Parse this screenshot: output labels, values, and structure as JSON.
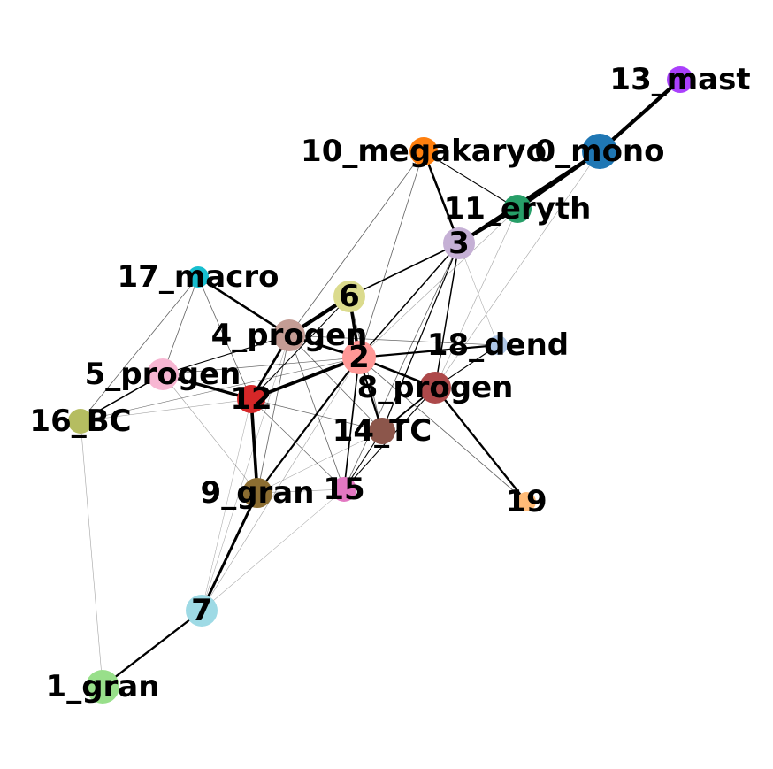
{
  "nodes": [
    {
      "id": "0",
      "label": "0_mono",
      "color": "#1f77b4"
    },
    {
      "id": "1",
      "label": "1_gran",
      "color": "#98df8a"
    },
    {
      "id": "2",
      "label": "2",
      "color": "#ff9896"
    },
    {
      "id": "3",
      "label": "3",
      "color": "#c5b0d5"
    },
    {
      "id": "4",
      "label": "4_progen",
      "color": "#c49c94"
    },
    {
      "id": "5",
      "label": "5_progen",
      "color": "#f7b6d2"
    },
    {
      "id": "6",
      "label": "6",
      "color": "#dbdb8d"
    },
    {
      "id": "7",
      "label": "7",
      "color": "#9edae5"
    },
    {
      "id": "8",
      "label": "8_progen",
      "color": "#ad494a"
    },
    {
      "id": "9",
      "label": "9_gran",
      "color": "#8c6d31"
    },
    {
      "id": "10",
      "label": "10_megakaryo",
      "color": "#ff7f0e"
    },
    {
      "id": "11",
      "label": "11_eryth",
      "color": "#279e68"
    },
    {
      "id": "12",
      "label": "12",
      "color": "#d62728"
    },
    {
      "id": "13",
      "label": "13_mast",
      "color": "#aa40fc"
    },
    {
      "id": "14",
      "label": "14_TC",
      "color": "#8c564b"
    },
    {
      "id": "15",
      "label": "15",
      "color": "#e377c2"
    },
    {
      "id": "16",
      "label": "16_BC",
      "color": "#b5bd61"
    },
    {
      "id": "17",
      "label": "17_macro",
      "color": "#17becf"
    },
    {
      "id": "18",
      "label": "18_dend",
      "color": "#aec7e8"
    },
    {
      "id": "19",
      "label": "19",
      "color": "#ffbb78"
    }
  ],
  "edges": [
    {
      "source": "13",
      "target": "0",
      "weight": 0.95
    },
    {
      "source": "0",
      "target": "11",
      "weight": 0.9
    },
    {
      "source": "0",
      "target": "3",
      "weight": 0.85
    },
    {
      "source": "11",
      "target": "3",
      "weight": 0.6
    },
    {
      "source": "10",
      "target": "3",
      "weight": 0.55
    },
    {
      "source": "10",
      "target": "11",
      "weight": 0.2
    },
    {
      "source": "10",
      "target": "2",
      "weight": 0.15
    },
    {
      "source": "10",
      "target": "4",
      "weight": 0.15
    },
    {
      "source": "3",
      "target": "6",
      "weight": 0.35
    },
    {
      "source": "3",
      "target": "2",
      "weight": 0.3
    },
    {
      "source": "3",
      "target": "8",
      "weight": 0.3
    },
    {
      "source": "3",
      "target": "14",
      "weight": 0.25
    },
    {
      "source": "3",
      "target": "18",
      "weight": 0.08
    },
    {
      "source": "3",
      "target": "15",
      "weight": 0.15
    },
    {
      "source": "11",
      "target": "2",
      "weight": 0.1
    },
    {
      "source": "11",
      "target": "8",
      "weight": 0.1
    },
    {
      "source": "0",
      "target": "8",
      "weight": 0.1
    },
    {
      "source": "6",
      "target": "4",
      "weight": 0.95
    },
    {
      "source": "6",
      "target": "2",
      "weight": 0.75
    },
    {
      "source": "6",
      "target": "12",
      "weight": 0.2
    },
    {
      "source": "6",
      "target": "14",
      "weight": 0.15
    },
    {
      "source": "17",
      "target": "4",
      "weight": 0.55
    },
    {
      "source": "17",
      "target": "5",
      "weight": 0.15
    },
    {
      "source": "17",
      "target": "16",
      "weight": 0.15
    },
    {
      "source": "17",
      "target": "12",
      "weight": 0.15
    },
    {
      "source": "4",
      "target": "2",
      "weight": 0.65
    },
    {
      "source": "4",
      "target": "12",
      "weight": 0.6
    },
    {
      "source": "4",
      "target": "5",
      "weight": 0.2
    },
    {
      "source": "4",
      "target": "9",
      "weight": 0.15
    },
    {
      "source": "4",
      "target": "14",
      "weight": 0.15
    },
    {
      "source": "4",
      "target": "15",
      "weight": 0.15
    },
    {
      "source": "4",
      "target": "18",
      "weight": 0.12
    },
    {
      "source": "5",
      "target": "12",
      "weight": 0.75
    },
    {
      "source": "5",
      "target": "16",
      "weight": 0.3
    },
    {
      "source": "5",
      "target": "2",
      "weight": 0.12
    },
    {
      "source": "5",
      "target": "9",
      "weight": 0.1
    },
    {
      "source": "12",
      "target": "2",
      "weight": 0.85
    },
    {
      "source": "12",
      "target": "9",
      "weight": 0.8
    },
    {
      "source": "12",
      "target": "16",
      "weight": 0.1
    },
    {
      "source": "12",
      "target": "15",
      "weight": 0.12
    },
    {
      "source": "12",
      "target": "14",
      "weight": 0.12
    },
    {
      "source": "2",
      "target": "8",
      "weight": 0.55
    },
    {
      "source": "2",
      "target": "18",
      "weight": 0.45
    },
    {
      "source": "2",
      "target": "14",
      "weight": 0.45
    },
    {
      "source": "2",
      "target": "15",
      "weight": 0.35
    },
    {
      "source": "2",
      "target": "9",
      "weight": 0.45
    },
    {
      "source": "2",
      "target": "19",
      "weight": 0.15
    },
    {
      "source": "2",
      "target": "7",
      "weight": 0.1
    },
    {
      "source": "2",
      "target": "16",
      "weight": 0.1
    },
    {
      "source": "8",
      "target": "14",
      "weight": 0.4
    },
    {
      "source": "8",
      "target": "19",
      "weight": 0.5
    },
    {
      "source": "8",
      "target": "18",
      "weight": 0.2
    },
    {
      "source": "8",
      "target": "15",
      "weight": 0.2
    },
    {
      "source": "14",
      "target": "15",
      "weight": 0.2
    },
    {
      "source": "14",
      "target": "9",
      "weight": 0.1
    },
    {
      "source": "9",
      "target": "7",
      "weight": 0.65
    },
    {
      "source": "9",
      "target": "15",
      "weight": 0.1
    },
    {
      "source": "7",
      "target": "1",
      "weight": 0.5
    },
    {
      "source": "7",
      "target": "15",
      "weight": 0.08
    },
    {
      "source": "7",
      "target": "12",
      "weight": 0.08
    },
    {
      "source": "7",
      "target": "4",
      "weight": 0.08
    },
    {
      "source": "16",
      "target": "1",
      "weight": 0.1
    },
    {
      "source": "16",
      "target": "2",
      "weight": 0.08
    }
  ]
}
